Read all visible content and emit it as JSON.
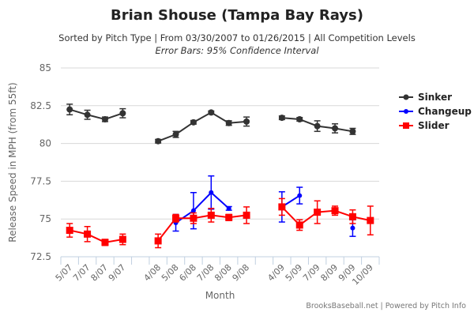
{
  "header": {
    "title": "Brian Shouse (Tampa Bay Rays)",
    "subtitle": "Sorted by Pitch Type | From 03/30/2007 to 01/26/2015 | All Competition Levels",
    "subtitle2": "Error Bars: 95% Confidence Interval"
  },
  "footer": {
    "credit": "BrooksBaseball.net | Powered by Pitch Info"
  },
  "chart_data": {
    "type": "line",
    "title": "Brian Shouse (Tampa Bay Rays)",
    "xlabel": "Month",
    "ylabel": "Release Speed in MPH (from 55ft)",
    "ylim": [
      72.5,
      85
    ],
    "yticks": [
      "72.5",
      "75",
      "77.5",
      "80",
      "82.5",
      "85"
    ],
    "ytick_values": [
      72.5,
      75,
      77.5,
      80,
      82.5,
      85
    ],
    "grid": true,
    "legend_position": "right",
    "categories": [
      "5/07",
      "7/07",
      "8/07",
      "9/07",
      "",
      "4/08",
      "5/08",
      "6/08",
      "7/08",
      "8/08",
      "9/08",
      "",
      "4/09",
      "5/09",
      "7/09",
      "8/09",
      "9/09",
      "10/09"
    ],
    "series": [
      {
        "name": "Sinker",
        "color": "#333333",
        "marker": "circle",
        "values": [
          82.25,
          81.9,
          81.6,
          82.0,
          null,
          80.15,
          80.6,
          81.4,
          82.05,
          81.35,
          81.45,
          null,
          81.7,
          81.6,
          81.15,
          81.0,
          80.8,
          null
        ],
        "err": [
          0.35,
          0.3,
          0.15,
          0.3,
          null,
          0.12,
          0.2,
          0.12,
          0.1,
          0.15,
          0.3,
          null,
          0.12,
          0.12,
          0.35,
          0.3,
          0.2,
          null
        ]
      },
      {
        "name": "Changeup",
        "color": "#0000ff",
        "marker": "diamond",
        "values": [
          null,
          null,
          null,
          null,
          null,
          null,
          74.75,
          75.55,
          76.75,
          75.7,
          null,
          null,
          75.8,
          76.55,
          null,
          null,
          74.4,
          null
        ],
        "err": [
          null,
          null,
          null,
          null,
          null,
          null,
          0.55,
          1.2,
          1.1,
          0.12,
          null,
          null,
          1.0,
          0.55,
          null,
          null,
          0.55,
          null
        ]
      },
      {
        "name": "Slider",
        "color": "#ff0000",
        "marker": "square",
        "values": [
          74.25,
          74.0,
          73.45,
          73.65,
          null,
          73.55,
          75.05,
          75.05,
          75.25,
          75.1,
          75.25,
          null,
          75.8,
          74.6,
          75.45,
          75.55,
          75.15,
          74.9
        ],
        "err": [
          0.45,
          0.5,
          0.2,
          0.35,
          null,
          0.45,
          0.25,
          0.35,
          0.45,
          0.2,
          0.55,
          null,
          0.55,
          0.35,
          0.75,
          0.3,
          0.45,
          0.95
        ]
      }
    ]
  }
}
